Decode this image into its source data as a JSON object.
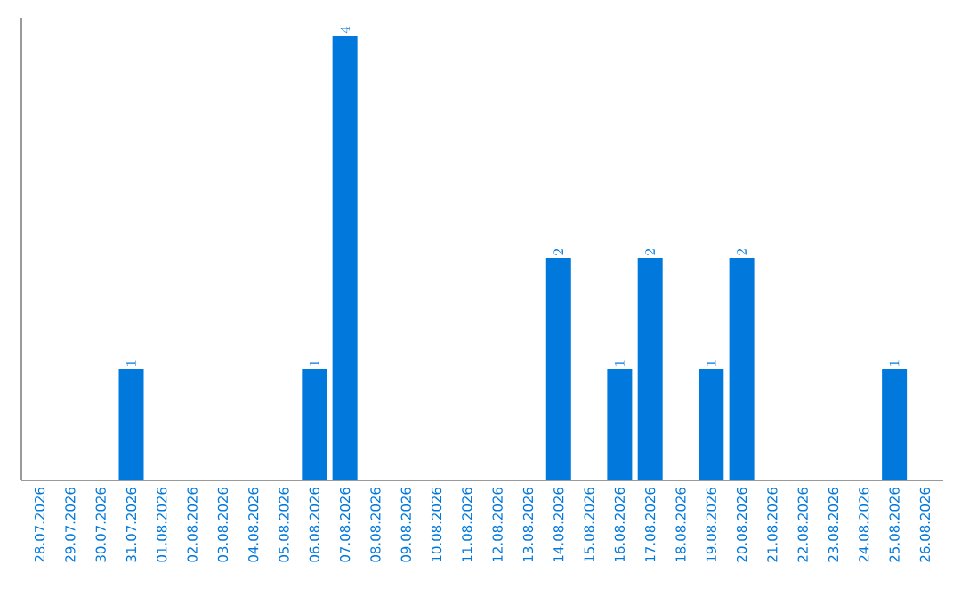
{
  "chart_data": {
    "type": "bar",
    "categories": [
      "28.07.2026",
      "29.07.2026",
      "30.07.2026",
      "31.07.2026",
      "01.08.2026",
      "02.08.2026",
      "03.08.2026",
      "04.08.2026",
      "05.08.2026",
      "06.08.2026",
      "07.08.2026",
      "08.08.2026",
      "09.08.2026",
      "10.08.2026",
      "11.08.2026",
      "12.08.2026",
      "13.08.2026",
      "14.08.2026",
      "15.08.2026",
      "16.08.2026",
      "17.08.2026",
      "18.08.2026",
      "19.08.2026",
      "20.08.2026",
      "21.08.2026",
      "22.08.2026",
      "23.08.2026",
      "24.08.2026",
      "25.08.2026",
      "26.08.2026"
    ],
    "values": [
      null,
      null,
      null,
      1,
      null,
      null,
      null,
      null,
      null,
      1,
      4,
      null,
      null,
      null,
      null,
      null,
      null,
      2,
      null,
      1,
      2,
      null,
      1,
      2,
      null,
      null,
      null,
      null,
      1,
      null
    ],
    "color": "#0078dc",
    "data_labels": true,
    "tick_labels": "x"
  }
}
